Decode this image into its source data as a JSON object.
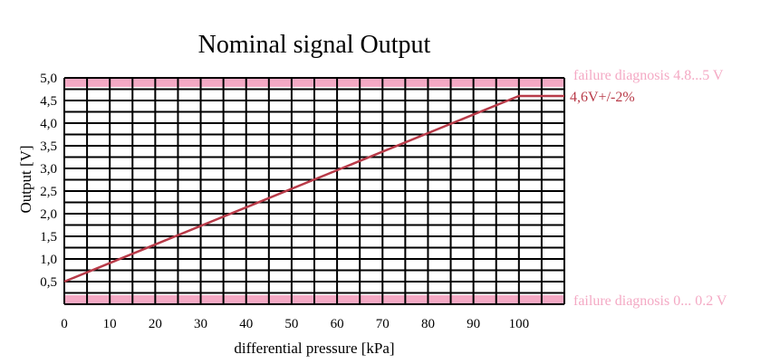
{
  "chart_data": {
    "type": "line",
    "title": "Nominal signal Output",
    "xlabel": "differential pressure [kPa]",
    "ylabel": "Output [V]",
    "xlim": [
      0,
      110
    ],
    "ylim": [
      0,
      5.0
    ],
    "x_ticks": [
      0,
      10,
      20,
      30,
      40,
      50,
      60,
      70,
      80,
      90,
      100
    ],
    "x_tick_labels": [
      "0",
      "10",
      "20",
      "30",
      "40",
      "50",
      "60",
      "70",
      "80",
      "90",
      "100"
    ],
    "y_ticks": [
      0.5,
      1.0,
      1.5,
      2.0,
      2.5,
      3.0,
      3.5,
      4.0,
      4.5,
      5.0
    ],
    "y_tick_labels": [
      "0,5",
      "1,0",
      "1,5",
      "2,0",
      "2,5",
      "3,0",
      "3,5",
      "4,0",
      "4,5",
      "5,0"
    ],
    "grid": true,
    "series": [
      {
        "x": [
          0,
          100,
          110
        ],
        "y": [
          0.5,
          4.6,
          4.6
        ],
        "color": "#b83a48",
        "label": "4,6V+/-2%"
      }
    ],
    "bands": [
      {
        "y_range": [
          4.8,
          5.0
        ],
        "color": "#f4a9c4",
        "label": "failure diagnosis 4.8...5 V"
      },
      {
        "y_range": [
          0.0,
          0.2
        ],
        "color": "#f4a9c4",
        "label": "failure diagnosis 0... 0.2 V"
      }
    ]
  }
}
